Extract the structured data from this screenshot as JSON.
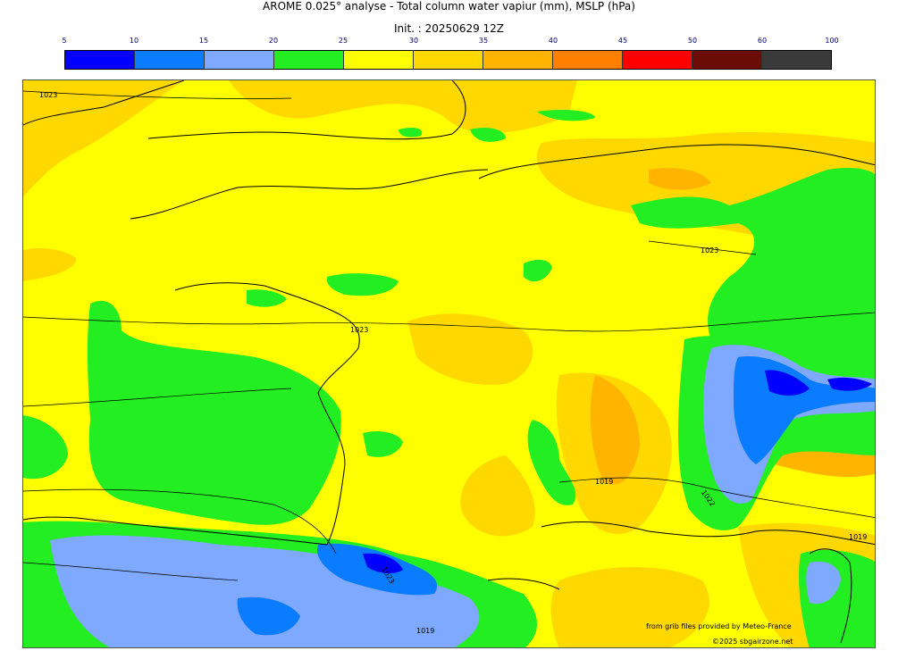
{
  "header": {
    "title": "AROME 0.025° analyse - Total column water vapiur (mm), MSLP (hPa)",
    "init": "Init. : 20250629 12Z"
  },
  "colorbar": {
    "ticks": [
      "5",
      "10",
      "15",
      "20",
      "25",
      "30",
      "35",
      "40",
      "45",
      "50",
      "60",
      "100"
    ],
    "colors": [
      "#0000ff",
      "#0a7cff",
      "#7fa8ff",
      "#22ee22",
      "#ffff00",
      "#ffd800",
      "#ffb400",
      "#ff8000",
      "#ff0000",
      "#6b0d06",
      "#3a3a3a"
    ]
  },
  "map": {
    "isobar_labels": [
      "1023",
      "1023",
      "1023",
      "1019",
      "1022",
      "1019",
      "1023",
      "1019"
    ],
    "credit_source": "from grib files provided by Meteo-France",
    "credit_copyright": "©2025 sbgairzone.net"
  }
}
